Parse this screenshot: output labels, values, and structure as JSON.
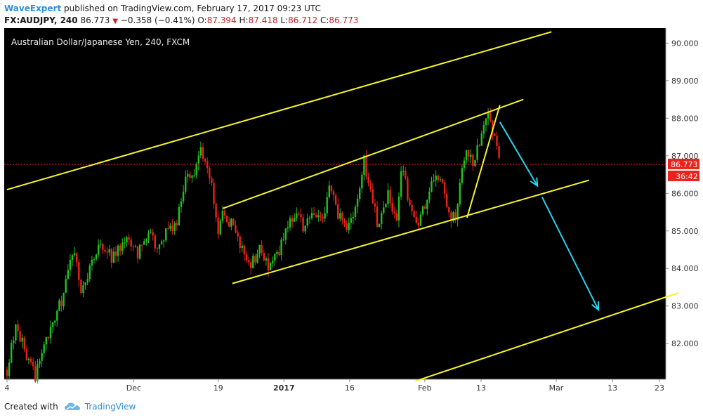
{
  "header": {
    "author": "WaveExpert",
    "published_text": "published on TradingView.com, February 17, 2017 09:23 UTC",
    "symbol": "FX:AUDJPY, 240",
    "price": "86.773",
    "change": "−0.358 (−0.41%)",
    "o_label": "O:",
    "o_val": "87.394",
    "h_label": "H:",
    "h_val": "87.418",
    "l_label": "L:",
    "l_val": "86.712",
    "c_label": "C:",
    "c_val": "86.773"
  },
  "footer": {
    "created_with": "Created with",
    "brand": "TradingView",
    "logo_icon": "tradingview-cloud-icon"
  },
  "chart_data": {
    "type": "candlestick",
    "title": "Australian Dollar/Japanese Yen, 240, FXCM",
    "ylim": [
      81.05,
      90.4
    ],
    "y_ticks": [
      82,
      83,
      84,
      85,
      86,
      87,
      88,
      89,
      90
    ],
    "y_tick_labels": [
      "82.000",
      "83.000",
      "84.000",
      "85.000",
      "86.000",
      "87.000",
      "88.000",
      "89.000",
      "90.000"
    ],
    "x_ticks": [
      {
        "label": "4",
        "date": "2016-11-04"
      },
      {
        "label": "Dec",
        "date": "2016-12-01"
      },
      {
        "label": "19",
        "date": "2016-12-19"
      },
      {
        "label": "2017",
        "date": "2017-01-02"
      },
      {
        "label": "16",
        "date": "2017-01-16"
      },
      {
        "label": "Feb",
        "date": "2017-02-01"
      },
      {
        "label": "13",
        "date": "2017-02-13"
      },
      {
        "label": "Mar",
        "date": "2017-03-01"
      },
      {
        "label": "13",
        "date": "2017-03-13"
      },
      {
        "label": "23",
        "date": "2017-03-23"
      }
    ],
    "last_price": 86.773,
    "last_price_label": "86.773",
    "countdown_label": "36:42",
    "colors": {
      "up": "#22c122",
      "down": "#e8231c",
      "background": "#000000",
      "channel": "#f5f52a",
      "arrow": "#29d3f0",
      "price_line": "#e8231c"
    },
    "price_path": [
      {
        "date": "2016-11-04",
        "price": 81.3
      },
      {
        "date": "2016-11-06",
        "price": 82.5
      },
      {
        "date": "2016-11-08",
        "price": 81.7
      },
      {
        "date": "2016-11-10",
        "price": 81.15
      },
      {
        "date": "2016-11-12",
        "price": 82.0
      },
      {
        "date": "2016-11-14",
        "price": 82.6
      },
      {
        "date": "2016-11-16",
        "price": 83.3
      },
      {
        "date": "2016-11-18",
        "price": 84.5
      },
      {
        "date": "2016-11-20",
        "price": 83.3
      },
      {
        "date": "2016-11-22",
        "price": 84.2
      },
      {
        "date": "2016-11-24",
        "price": 84.7
      },
      {
        "date": "2016-11-26",
        "price": 84.3
      },
      {
        "date": "2016-11-28",
        "price": 84.5
      },
      {
        "date": "2016-11-30",
        "price": 84.8
      },
      {
        "date": "2016-12-02",
        "price": 84.4
      },
      {
        "date": "2016-12-04",
        "price": 84.9
      },
      {
        "date": "2016-12-06",
        "price": 84.6
      },
      {
        "date": "2016-12-08",
        "price": 85.0
      },
      {
        "date": "2016-12-10",
        "price": 85.2
      },
      {
        "date": "2016-12-12",
        "price": 86.3
      },
      {
        "date": "2016-12-14",
        "price": 86.6
      },
      {
        "date": "2016-12-15",
        "price": 87.3
      },
      {
        "date": "2016-12-16",
        "price": 86.9
      },
      {
        "date": "2016-12-17",
        "price": 86.6
      },
      {
        "date": "2016-12-19",
        "price": 85.0
      },
      {
        "date": "2016-12-20",
        "price": 85.6
      },
      {
        "date": "2016-12-22",
        "price": 85.1
      },
      {
        "date": "2016-12-24",
        "price": 84.6
      },
      {
        "date": "2016-12-26",
        "price": 84.1
      },
      {
        "date": "2016-12-28",
        "price": 84.6
      },
      {
        "date": "2016-12-30",
        "price": 84.0
      },
      {
        "date": "2017-01-01",
        "price": 84.5
      },
      {
        "date": "2017-01-03",
        "price": 85.1
      },
      {
        "date": "2017-01-05",
        "price": 85.7
      },
      {
        "date": "2017-01-06",
        "price": 85.0
      },
      {
        "date": "2017-01-08",
        "price": 85.6
      },
      {
        "date": "2017-01-10",
        "price": 85.3
      },
      {
        "date": "2017-01-12",
        "price": 86.2
      },
      {
        "date": "2017-01-13",
        "price": 85.6
      },
      {
        "date": "2017-01-15",
        "price": 85.0
      },
      {
        "date": "2017-01-17",
        "price": 85.4
      },
      {
        "date": "2017-01-19",
        "price": 86.9
      },
      {
        "date": "2017-01-20",
        "price": 86.3
      },
      {
        "date": "2017-01-22",
        "price": 85.2
      },
      {
        "date": "2017-01-24",
        "price": 86.0
      },
      {
        "date": "2017-01-26",
        "price": 85.4
      },
      {
        "date": "2017-01-27",
        "price": 86.8
      },
      {
        "date": "2017-01-29",
        "price": 85.6
      },
      {
        "date": "2017-01-31",
        "price": 85.2
      },
      {
        "date": "2017-02-02",
        "price": 86.2
      },
      {
        "date": "2017-02-04",
        "price": 86.5
      },
      {
        "date": "2017-02-06",
        "price": 85.5
      },
      {
        "date": "2017-02-07",
        "price": 85.3
      },
      {
        "date": "2017-02-08",
        "price": 85.6
      },
      {
        "date": "2017-02-09",
        "price": 86.8
      },
      {
        "date": "2017-02-10",
        "price": 87.2
      },
      {
        "date": "2017-02-11",
        "price": 86.8
      },
      {
        "date": "2017-02-13",
        "price": 87.5
      },
      {
        "date": "2017-02-14",
        "price": 88.1
      },
      {
        "date": "2017-02-15",
        "price": 87.9
      },
      {
        "date": "2017-02-16",
        "price": 87.3
      },
      {
        "date": "2017-02-17",
        "price": 86.773
      }
    ],
    "channel_lines": [
      {
        "from": {
          "date": "2016-11-04",
          "price": 86.1
        },
        "to": {
          "date": "2017-02-28",
          "price": 90.3
        }
      },
      {
        "from": {
          "date": "2016-12-20",
          "price": 85.6
        },
        "to": {
          "date": "2017-02-22",
          "price": 88.5
        }
      },
      {
        "from": {
          "date": "2016-12-22",
          "price": 83.6
        },
        "to": {
          "date": "2017-03-08",
          "price": 86.35
        }
      },
      {
        "from": {
          "date": "2017-01-30",
          "price": 81.0
        },
        "to": {
          "date": "2017-03-27",
          "price": 83.35
        }
      },
      {
        "from": {
          "date": "2017-02-10",
          "price": 85.35
        },
        "to": {
          "date": "2017-02-17",
          "price": 88.35
        }
      }
    ],
    "arrows": [
      {
        "from": {
          "date": "2017-02-17",
          "price": 87.9
        },
        "to": {
          "date": "2017-02-25",
          "price": 86.2
        }
      },
      {
        "from": {
          "date": "2017-02-26",
          "price": 85.9
        },
        "to": {
          "date": "2017-03-10",
          "price": 82.9
        }
      }
    ]
  }
}
